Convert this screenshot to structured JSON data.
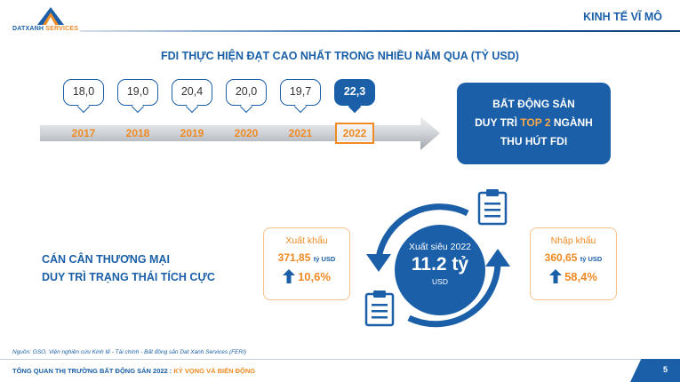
{
  "brand": {
    "name_part1": "DATXANH",
    "name_part2": " SERVICES"
  },
  "header": {
    "section_title": "KINH TẾ VĨ MÔ"
  },
  "fdi": {
    "heading": "FDI THỰC HIỆN ĐẠT CAO NHẤT TRONG NHIỀU NĂM QUA (TỶ USD)",
    "timeline": [
      {
        "year": "2017",
        "value": "18,0"
      },
      {
        "year": "2018",
        "value": "19,0"
      },
      {
        "year": "2019",
        "value": "20,4"
      },
      {
        "year": "2020",
        "value": "20,0"
      },
      {
        "year": "2021",
        "value": "19,7"
      },
      {
        "year": "2022",
        "value": "22,3"
      }
    ],
    "highlight_year": "2022",
    "callout": {
      "line1": "BẤT ĐỘNG SẢN",
      "line2_pre": "DUY TRÌ ",
      "line2_accent": "TOP 2",
      "line2_post": " NGÀNH",
      "line3": "THU HÚT FDI"
    }
  },
  "trade": {
    "title_line1": "CÁN CÂN THƯƠNG MẠI",
    "title_line2": "DUY TRÌ TRẠNG THÁI TÍCH CỰC",
    "export": {
      "label": "Xuất khẩu",
      "value": "371,85",
      "unit": "tỷ USD",
      "change": "10,6%"
    },
    "import": {
      "label": "Nhập khẩu",
      "value": "360,65",
      "unit": "tỷ USD",
      "change": "58,4%"
    },
    "surplus": {
      "label": "Xuất siêu 2022",
      "value": "11.2 tỷ",
      "unit": "USD"
    }
  },
  "footer": {
    "source": "Nguồn: GSO, Viện nghiên cứu Kinh tế - Tài chính - Bất động sản Dat Xanh Services (FERI)",
    "title_main": "TỔNG QUAN THỊ TRƯỜNG BẤT ĐỘNG SẢN 2022 : ",
    "title_accent": "KỲ VỌNG VÀ BIẾN ĐỘNG",
    "page": "5"
  },
  "colors": {
    "primary": "#1a5fa8",
    "accent": "#f08a24",
    "light_orange": "#f5c08a"
  },
  "icons": [
    "logo-mark-icon",
    "timeline-arrow-icon",
    "cycle-arrows-icon",
    "clipboard-icon",
    "up-arrow-icon"
  ]
}
